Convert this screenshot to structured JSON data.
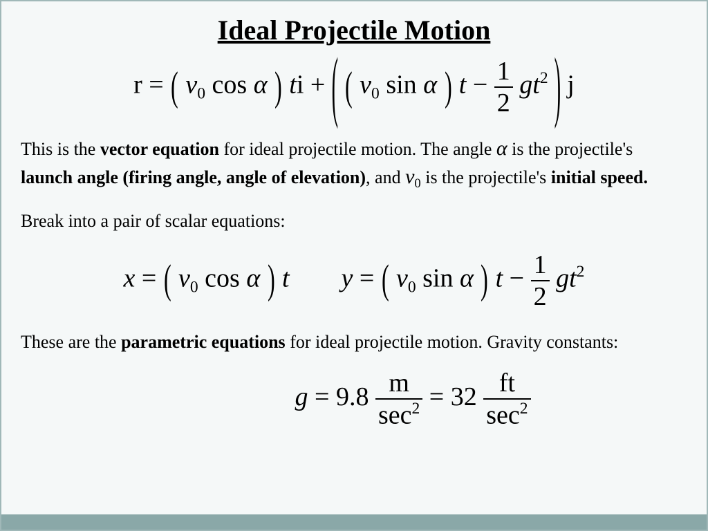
{
  "title": "Ideal Projectile Motion",
  "colors": {
    "page_bg": "#f5f8f8",
    "border": "#a0b8b8",
    "text": "#000000",
    "accent_bar": "#8aa8a8"
  },
  "typography": {
    "title_fontsize": 40,
    "body_fontsize": 26,
    "equation_fontsize": 38,
    "font_family": "Georgia / Times New Roman serif"
  },
  "main_equation": {
    "variables": {
      "r": "r",
      "v0": "v",
      "v0_sub": "0",
      "alpha": "α",
      "t": "t",
      "g": "g",
      "i": "i",
      "j": "j"
    },
    "functions": {
      "cos": "cos",
      "sin": "sin"
    },
    "fraction": {
      "num": "1",
      "den": "2"
    },
    "tsq_exp": "2"
  },
  "para1": {
    "t1": "This is the ",
    "b1": "vector equation",
    "t2": " for ideal projectile motion.  The angle ",
    "alpha": "α",
    "t3": "  is the projectile's ",
    "b2": "launch angle (firing angle, angle of elevation)",
    "t4": ", and  ",
    "v0": "v",
    "v0_sub": "0",
    "t5": "  is the projectile's ",
    "b3": "initial speed."
  },
  "para2": "Break into a pair of scalar equations:",
  "scalar_equations": {
    "x": {
      "lhs": "x",
      "v0": "v",
      "v0_sub": "0",
      "cos": "cos",
      "alpha": "α",
      "t": "t"
    },
    "y": {
      "lhs": "y",
      "v0": "v",
      "v0_sub": "0",
      "sin": "sin",
      "alpha": "α",
      "t": "t",
      "frac_num": "1",
      "frac_den": "2",
      "g": "g",
      "t2": "t",
      "exp": "2"
    }
  },
  "para3": {
    "t1": "These are the ",
    "b1": "parametric equations",
    "t2": " for ideal projectile motion.  Gravity constants:"
  },
  "gravity": {
    "g": "g",
    "val1": "9.8",
    "unit1_num": "m",
    "unit1_den": "sec",
    "unit1_exp": "2",
    "val2": "32",
    "unit2_num": "ft",
    "unit2_den": "sec",
    "unit2_exp": "2"
  }
}
